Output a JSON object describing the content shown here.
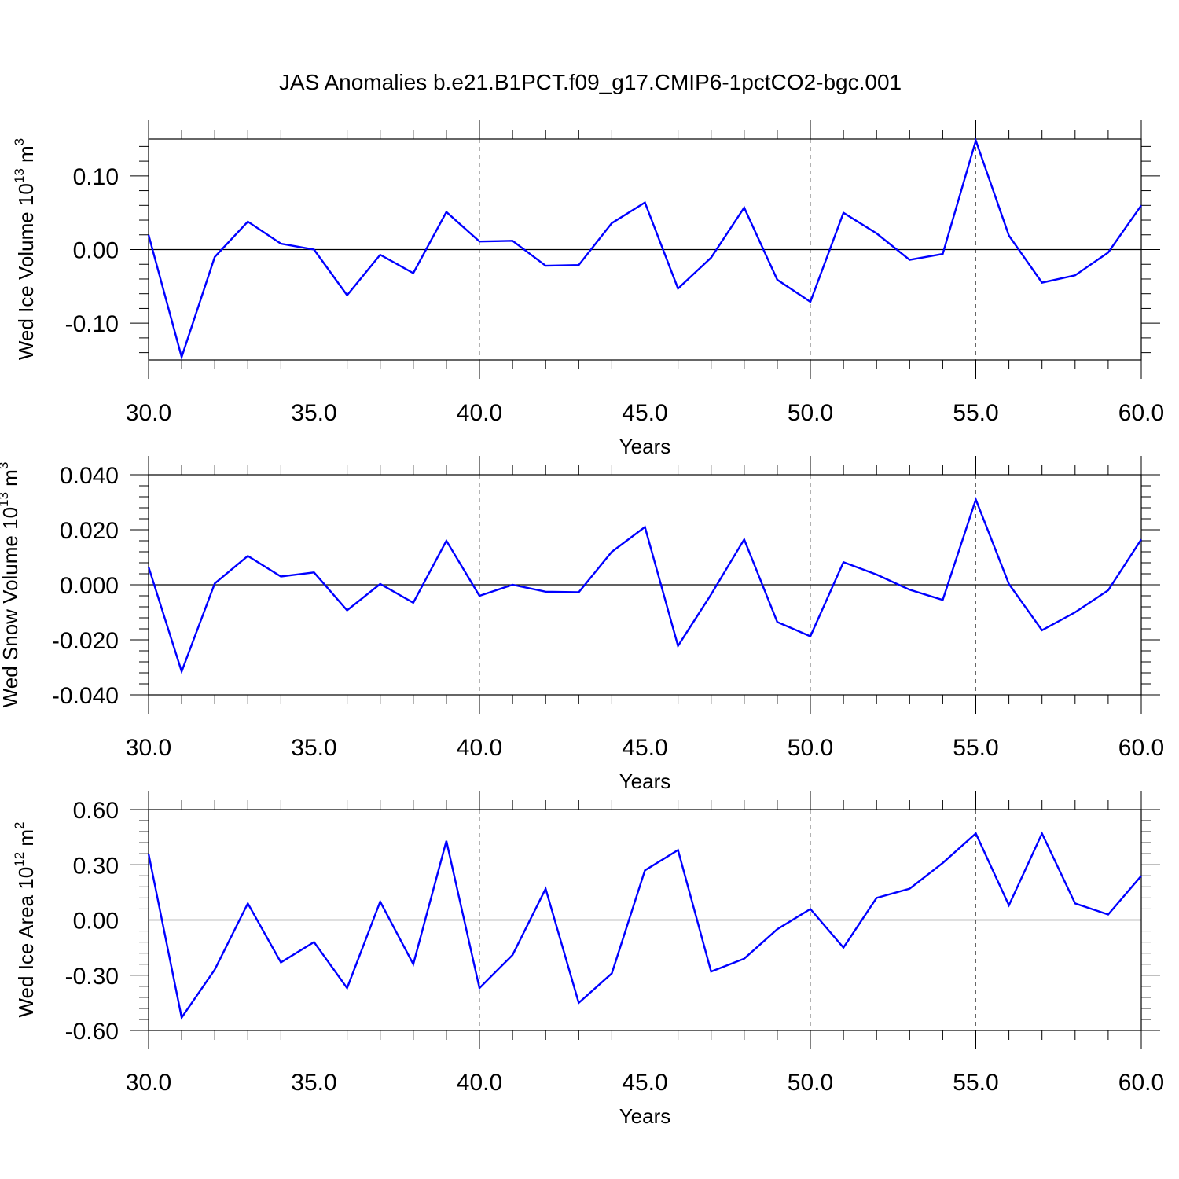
{
  "title": "JAS Anomalies b.e21.B1PCT.f09_g17.CMIP6-1pctCO2-bgc.001",
  "colors": {
    "line": "#0000ff",
    "axis": "#000000",
    "grid": "#808080"
  },
  "panels": [
    {
      "ylabel": {
        "main": "Wed Ice Volume 10",
        "sup": "13",
        "unit": " m",
        "unit_sup": "3"
      },
      "xlabel": "Years",
      "ytick_labels": [
        "0.10",
        "0.00",
        "-0.10"
      ],
      "xtick_labels": [
        "30.0",
        "35.0",
        "40.0",
        "45.0",
        "50.0",
        "55.0",
        "60.0"
      ]
    },
    {
      "ylabel": {
        "main": "Wed Snow Volume 10",
        "sup": "13",
        "unit": " m",
        "unit_sup": "3"
      },
      "xlabel": "Years",
      "ytick_labels": [
        "0.040",
        "0.020",
        "0.000",
        "-0.020",
        "-0.040"
      ],
      "xtick_labels": [
        "30.0",
        "35.0",
        "40.0",
        "45.0",
        "50.0",
        "55.0",
        "60.0"
      ]
    },
    {
      "ylabel": {
        "main": "Wed Ice Area 10",
        "sup": "12",
        "unit": " m",
        "unit_sup": "2"
      },
      "xlabel": "Years",
      "ytick_labels": [
        "0.60",
        "0.30",
        "0.00",
        "-0.30",
        "-0.60"
      ],
      "xtick_labels": [
        "30.0",
        "35.0",
        "40.0",
        "45.0",
        "50.0",
        "55.0",
        "60.0"
      ]
    }
  ],
  "chart_data": [
    {
      "type": "line",
      "title": "JAS Anomalies b.e21.B1PCT.f09_g17.CMIP6-1pctCO2-bgc.001",
      "xlabel": "Years",
      "ylabel": "Wed Ice Volume 10^13 m^3",
      "xlim": [
        30,
        60
      ],
      "ylim": [
        -0.15,
        0.15
      ],
      "xticks": [
        30,
        35,
        40,
        45,
        50,
        55,
        60
      ],
      "yticks": [
        0.1,
        0.0,
        -0.1
      ],
      "grid": "vertical dashed at major x ticks",
      "series": [
        {
          "x": [
            30,
            31,
            32,
            33,
            34,
            35,
            36,
            37,
            38,
            39,
            40,
            41,
            42,
            43,
            44,
            45,
            46,
            47,
            48,
            49,
            50,
            51,
            52,
            53,
            54,
            55,
            56,
            57,
            58,
            59,
            60
          ],
          "values": [
            0.02,
            -0.146,
            -0.01,
            0.038,
            0.008,
            0.0,
            -0.062,
            -0.007,
            -0.032,
            0.051,
            0.011,
            0.012,
            -0.022,
            -0.021,
            0.036,
            0.064,
            -0.053,
            -0.011,
            0.057,
            -0.041,
            -0.071,
            0.05,
            0.022,
            -0.014,
            -0.006,
            0.148,
            0.019,
            -0.045,
            -0.035,
            -0.004,
            0.06
          ]
        }
      ]
    },
    {
      "type": "line",
      "xlabel": "Years",
      "ylabel": "Wed Snow Volume 10^13 m^3",
      "xlim": [
        30,
        60
      ],
      "ylim": [
        -0.04,
        0.04
      ],
      "xticks": [
        30,
        35,
        40,
        45,
        50,
        55,
        60
      ],
      "yticks": [
        0.04,
        0.02,
        0.0,
        -0.02,
        -0.04
      ],
      "grid": "vertical dashed at major x ticks",
      "series": [
        {
          "x": [
            30,
            31,
            32,
            33,
            34,
            35,
            36,
            37,
            38,
            39,
            40,
            41,
            42,
            43,
            44,
            45,
            46,
            47,
            48,
            49,
            50,
            51,
            52,
            53,
            54,
            55,
            56,
            57,
            58,
            59,
            60
          ],
          "values": [
            0.0065,
            -0.0315,
            0.0005,
            0.0105,
            0.003,
            0.0045,
            -0.0093,
            0.0003,
            -0.0065,
            0.016,
            -0.004,
            0.0,
            -0.0025,
            -0.0027,
            0.012,
            0.021,
            -0.0222,
            -0.0035,
            0.0165,
            -0.0135,
            -0.0187,
            0.0082,
            0.0037,
            -0.0018,
            -0.0055,
            0.031,
            0.0003,
            -0.0165,
            -0.01,
            -0.002,
            0.0165
          ]
        }
      ]
    },
    {
      "type": "line",
      "xlabel": "Years",
      "ylabel": "Wed Ice Area 10^12 m^2",
      "xlim": [
        30,
        60
      ],
      "ylim": [
        -0.6,
        0.6
      ],
      "xticks": [
        30,
        35,
        40,
        45,
        50,
        55,
        60
      ],
      "yticks": [
        0.6,
        0.3,
        0.0,
        -0.3,
        -0.6
      ],
      "grid": "vertical dashed at major x ticks",
      "series": [
        {
          "x": [
            30,
            31,
            32,
            33,
            34,
            35,
            36,
            37,
            38,
            39,
            40,
            41,
            42,
            43,
            44,
            45,
            46,
            47,
            48,
            49,
            50,
            51,
            52,
            53,
            54,
            55,
            56,
            57,
            58,
            59,
            60
          ],
          "values": [
            0.36,
            -0.53,
            -0.27,
            0.09,
            -0.23,
            -0.12,
            -0.37,
            0.1,
            -0.24,
            0.43,
            -0.37,
            -0.19,
            0.17,
            -0.45,
            -0.29,
            0.27,
            0.38,
            -0.28,
            -0.21,
            -0.05,
            0.06,
            -0.15,
            0.12,
            0.17,
            0.31,
            0.47,
            0.08,
            0.47,
            0.09,
            0.03,
            0.24
          ]
        }
      ]
    }
  ]
}
